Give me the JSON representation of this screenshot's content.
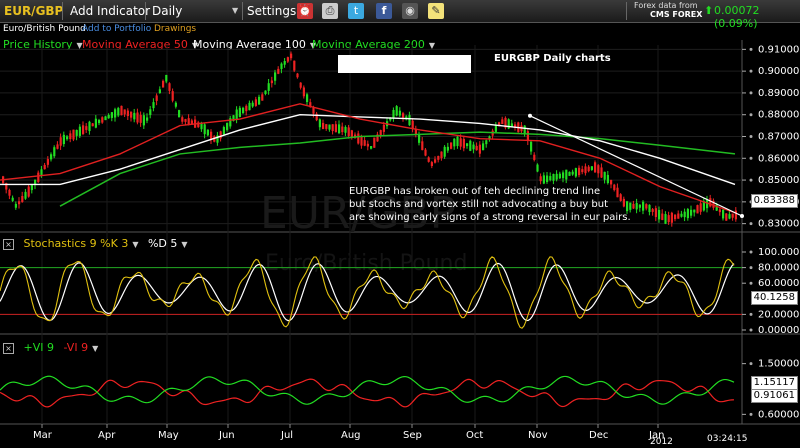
{
  "toolbar": {
    "symbol": "EUR/GBP",
    "add_indicator": "Add Indicator",
    "interval": "Daily",
    "settings": "Settings",
    "data_from": "Forex data from",
    "provider": "CMS FOREX",
    "change": "0.00072 (0.09%)"
  },
  "subbar": {
    "name": "Euro/British Pound",
    "add_portfolio": "Add to Portfolio",
    "drawings": "Drawings"
  },
  "legend": {
    "price_history": "Price History",
    "ma50": "Moving Average 50",
    "ma100": "Moving Average 100",
    "ma200": "Moving Average 200"
  },
  "colors": {
    "up": "#22dd22",
    "down": "#ee2222",
    "ma50": "#e02020",
    "ma100": "#ffffff",
    "ma200": "#22bb22",
    "stoch_k": "#e0c010",
    "stoch_d": "#ffffff"
  },
  "main_chart": {
    "title": "EURGBP Daily charts",
    "watermark": "EUR/GBP",
    "watermark_sub": "Euro/British Pound",
    "annotation": [
      "EURGBP has broken out of teh declining trend line",
      "but stochs and vortex still not advocating a buy but",
      "are showing early signs of a strong reversal in eur pairs."
    ],
    "y_ticks": [
      "0.91000",
      "0.90000",
      "0.89000",
      "0.88000",
      "0.87000",
      "0.86000",
      "0.85000",
      "0.84000",
      "0.83000"
    ],
    "last_price": "0.83388"
  },
  "stoch_panel": {
    "label": "Stochastics 9 %K 3",
    "d_label": "%D 5",
    "y_ticks": [
      "100.000",
      "80.0000",
      "60.0000",
      "20.0000",
      "0.00000"
    ],
    "last_value": "40.1258"
  },
  "vortex_panel": {
    "plus_label": "+VI 9",
    "minus_label": "-VI 9",
    "y_ticks": [
      "1.50000",
      "0.60000"
    ],
    "plus_value": "1.15117",
    "minus_value": "0.91061"
  },
  "x_axis": {
    "months": [
      "Mar",
      "Apr",
      "May",
      "Jun",
      "Jul",
      "Aug",
      "Sep",
      "Oct",
      "Nov",
      "Dec",
      "Jan"
    ],
    "year": "2012",
    "clock": "03:24:15"
  },
  "chart_data": {
    "type": "candlestick",
    "title": "EURGBP Daily charts",
    "months": [
      "Mar",
      "Apr",
      "May",
      "Jun",
      "Jul",
      "Aug",
      "Sep",
      "Oct",
      "Nov",
      "Dec",
      "Jan"
    ],
    "ylim": [
      0.828,
      0.912
    ],
    "price_path": [
      {
        "x": 0,
        "y": 0.852
      },
      {
        "x": 15,
        "y": 0.838
      },
      {
        "x": 30,
        "y": 0.846
      },
      {
        "x": 60,
        "y": 0.868
      },
      {
        "x": 90,
        "y": 0.875
      },
      {
        "x": 120,
        "y": 0.882
      },
      {
        "x": 145,
        "y": 0.877
      },
      {
        "x": 165,
        "y": 0.897
      },
      {
        "x": 180,
        "y": 0.878
      },
      {
        "x": 200,
        "y": 0.875
      },
      {
        "x": 215,
        "y": 0.868
      },
      {
        "x": 235,
        "y": 0.88
      },
      {
        "x": 260,
        "y": 0.887
      },
      {
        "x": 280,
        "y": 0.902
      },
      {
        "x": 290,
        "y": 0.907
      },
      {
        "x": 300,
        "y": 0.893
      },
      {
        "x": 320,
        "y": 0.875
      },
      {
        "x": 345,
        "y": 0.873
      },
      {
        "x": 370,
        "y": 0.865
      },
      {
        "x": 395,
        "y": 0.882
      },
      {
        "x": 410,
        "y": 0.877
      },
      {
        "x": 430,
        "y": 0.857
      },
      {
        "x": 455,
        "y": 0.868
      },
      {
        "x": 480,
        "y": 0.864
      },
      {
        "x": 500,
        "y": 0.877
      },
      {
        "x": 525,
        "y": 0.873
      },
      {
        "x": 540,
        "y": 0.85
      },
      {
        "x": 570,
        "y": 0.853
      },
      {
        "x": 595,
        "y": 0.856
      },
      {
        "x": 610,
        "y": 0.849
      },
      {
        "x": 625,
        "y": 0.838
      },
      {
        "x": 645,
        "y": 0.838
      },
      {
        "x": 665,
        "y": 0.832
      },
      {
        "x": 690,
        "y": 0.835
      },
      {
        "x": 710,
        "y": 0.84
      },
      {
        "x": 725,
        "y": 0.833
      },
      {
        "x": 735,
        "y": 0.834
      }
    ],
    "ma50": [
      {
        "x": 0,
        "y": 0.85
      },
      {
        "x": 60,
        "y": 0.853
      },
      {
        "x": 120,
        "y": 0.862
      },
      {
        "x": 180,
        "y": 0.875
      },
      {
        "x": 240,
        "y": 0.878
      },
      {
        "x": 300,
        "y": 0.885
      },
      {
        "x": 360,
        "y": 0.878
      },
      {
        "x": 420,
        "y": 0.873
      },
      {
        "x": 480,
        "y": 0.869
      },
      {
        "x": 540,
        "y": 0.868
      },
      {
        "x": 600,
        "y": 0.86
      },
      {
        "x": 660,
        "y": 0.847
      },
      {
        "x": 735,
        "y": 0.835
      }
    ],
    "ma100": [
      {
        "x": 0,
        "y": 0.848
      },
      {
        "x": 60,
        "y": 0.848
      },
      {
        "x": 120,
        "y": 0.855
      },
      {
        "x": 180,
        "y": 0.864
      },
      {
        "x": 240,
        "y": 0.873
      },
      {
        "x": 300,
        "y": 0.88
      },
      {
        "x": 360,
        "y": 0.879
      },
      {
        "x": 420,
        "y": 0.878
      },
      {
        "x": 480,
        "y": 0.876
      },
      {
        "x": 540,
        "y": 0.873
      },
      {
        "x": 600,
        "y": 0.868
      },
      {
        "x": 660,
        "y": 0.86
      },
      {
        "x": 735,
        "y": 0.848
      }
    ],
    "ma200": [
      {
        "x": 60,
        "y": 0.838
      },
      {
        "x": 120,
        "y": 0.853
      },
      {
        "x": 180,
        "y": 0.862
      },
      {
        "x": 240,
        "y": 0.865
      },
      {
        "x": 300,
        "y": 0.867
      },
      {
        "x": 360,
        "y": 0.87
      },
      {
        "x": 420,
        "y": 0.871
      },
      {
        "x": 480,
        "y": 0.872
      },
      {
        "x": 540,
        "y": 0.871
      },
      {
        "x": 600,
        "y": 0.869
      },
      {
        "x": 660,
        "y": 0.866
      },
      {
        "x": 735,
        "y": 0.862
      }
    ],
    "trendline": [
      {
        "x": 530,
        "y": 0.8795
      },
      {
        "x": 742,
        "y": 0.8335
      }
    ]
  }
}
